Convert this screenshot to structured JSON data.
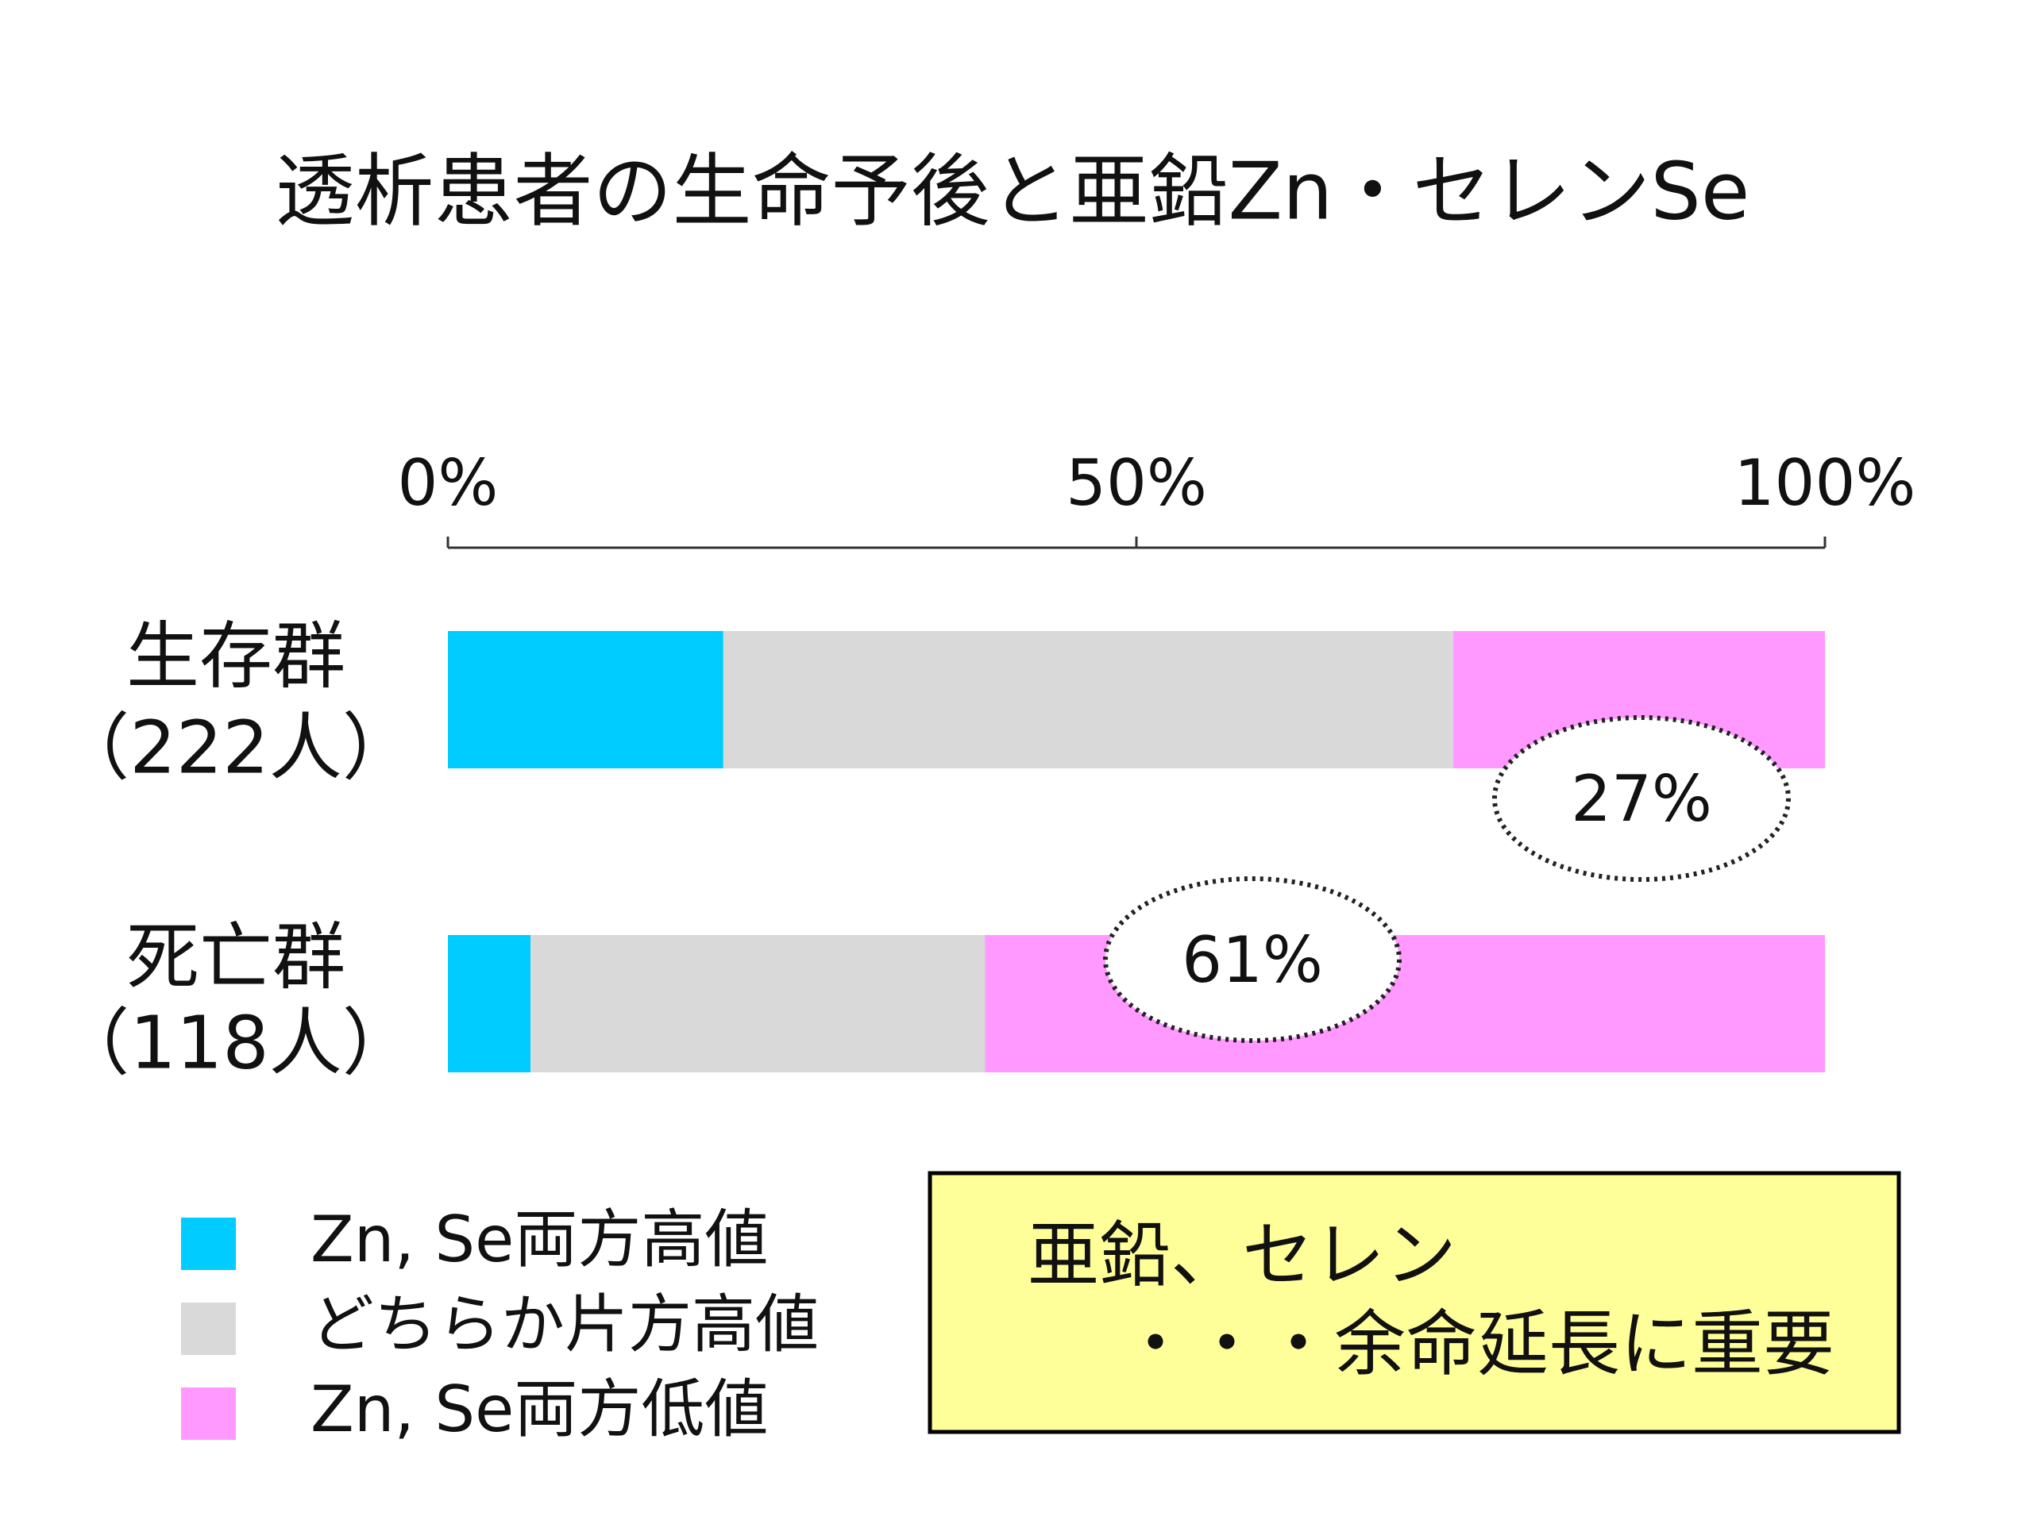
{
  "chart_data": {
    "type": "stacked-barh",
    "title": "透析患者の生命予後と亜鉛Zn・セレンSe",
    "categories": [
      [
        "生存群",
        "（222人）"
      ],
      [
        "死亡群",
        "（118人）"
      ]
    ],
    "series": [
      {
        "name": "Zn, Se両方高値",
        "color": "#00ccff",
        "values": [
          20,
          6
        ]
      },
      {
        "name": "どちらか片方高値",
        "color": "#d9d9d9",
        "values": [
          53,
          33
        ]
      },
      {
        "name": "Zn, Se両方低値",
        "color": "#ff99ff",
        "values": [
          27,
          61
        ],
        "value_labels": [
          "27%",
          "61%"
        ]
      }
    ],
    "xlim": [
      0,
      100
    ],
    "xticks": [
      {
        "value": 0,
        "label": "0%"
      },
      {
        "value": 50,
        "label": "50%"
      },
      {
        "value": 100,
        "label": "100%"
      }
    ],
    "annotations": [
      "亜鉛、セレン",
      "・・・余命延長に重要"
    ]
  }
}
